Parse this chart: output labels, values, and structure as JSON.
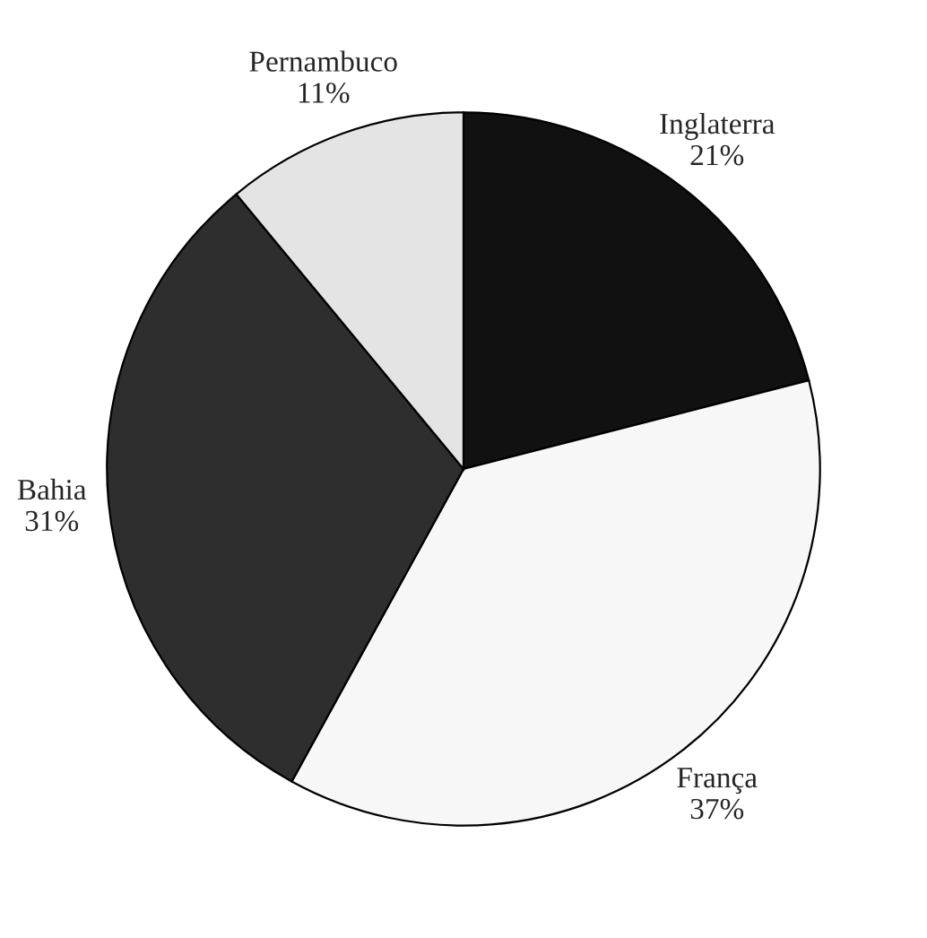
{
  "chart_data": {
    "type": "pie",
    "categories": [
      "Inglaterra",
      "França",
      "Bahia",
      "Pernambuco"
    ],
    "values": [
      21,
      37,
      31,
      11
    ],
    "value_labels": [
      "21%",
      "37%",
      "31%",
      "11%"
    ],
    "colors": [
      "#111111",
      "#f7f7f7",
      "#2e2e2e",
      "#e4e4e4"
    ]
  }
}
